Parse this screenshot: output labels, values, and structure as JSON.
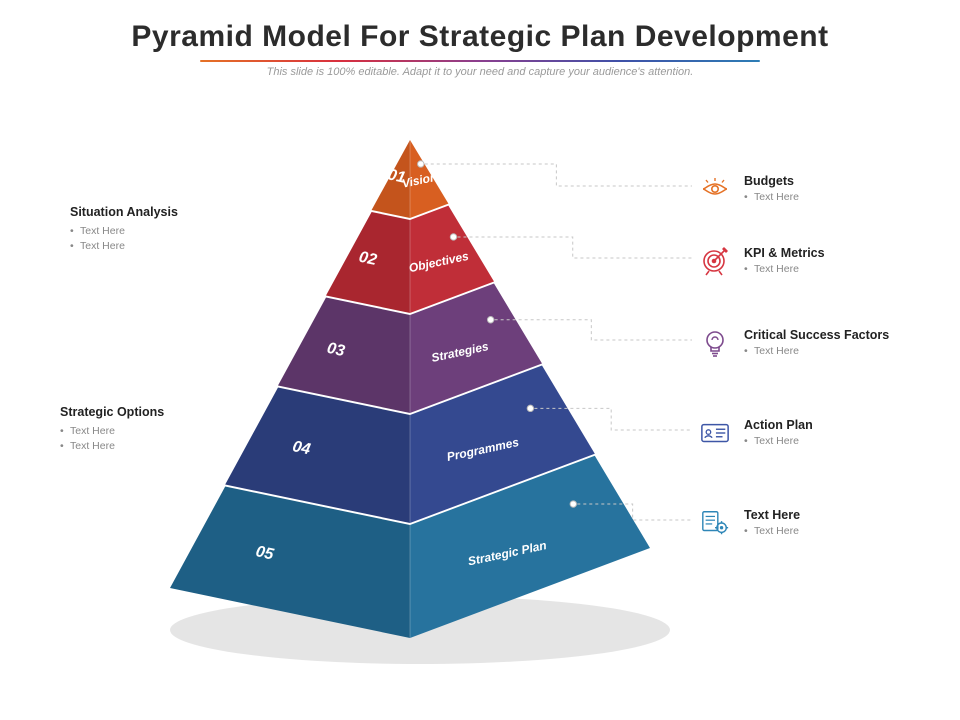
{
  "title": "Pyramid Model For Strategic Plan Development",
  "subtitle": "This slide is 100% editable. Adapt it to your need and capture your audience's attention.",
  "pyramid": {
    "type": "pyramid",
    "background_color": "#ffffff",
    "levels": [
      {
        "number": "01",
        "label": "Vision",
        "face_color": "#ec6b26",
        "left_color": "#c4541c",
        "right_color": "#d85f21"
      },
      {
        "number": "02",
        "label": "Objectives",
        "face_color": "#d63641",
        "left_color": "#a9262f",
        "right_color": "#c02e38"
      },
      {
        "number": "03",
        "label": "Strategies",
        "face_color": "#7d4a8d",
        "left_color": "#5c3568",
        "right_color": "#6d3f7b"
      },
      {
        "number": "04",
        "label": "Programmes",
        "face_color": "#3d56a6",
        "left_color": "#2a3c78",
        "right_color": "#344990"
      },
      {
        "number": "05",
        "label": "Strategic Plan",
        "face_color": "#2e86b7",
        "left_color": "#1e5f85",
        "right_color": "#27739e"
      }
    ],
    "shadow_color": "#d9d9d9"
  },
  "left_callouts": [
    {
      "heading": "Situation Analysis",
      "bullets": [
        "Text Here",
        "Text Here"
      ]
    },
    {
      "heading": "Strategic Options",
      "bullets": [
        "Text Here",
        "Text Here"
      ]
    }
  ],
  "right_callouts": [
    {
      "heading": "Budgets",
      "sub": "Text Here",
      "icon": "eye",
      "icon_color": "#e57226"
    },
    {
      "heading": "KPI & Metrics",
      "sub": "Text Here",
      "icon": "target",
      "icon_color": "#d63641"
    },
    {
      "heading": "Critical Success Factors",
      "sub": "Text Here",
      "icon": "bulb",
      "icon_color": "#7d4a8d"
    },
    {
      "heading": "Action Plan",
      "sub": "Text Here",
      "icon": "card",
      "icon_color": "#3d56a6"
    },
    {
      "heading": "Text Here",
      "sub": "Text Here",
      "icon": "gear-doc",
      "icon_color": "#2e86b7"
    }
  ],
  "typography": {
    "title_fontsize": 30,
    "subtitle_fontsize": 11,
    "level_number_fontsize": 16,
    "level_label_fontsize": 12,
    "callout_heading_fontsize": 12.5,
    "callout_bullet_fontsize": 10.5
  }
}
